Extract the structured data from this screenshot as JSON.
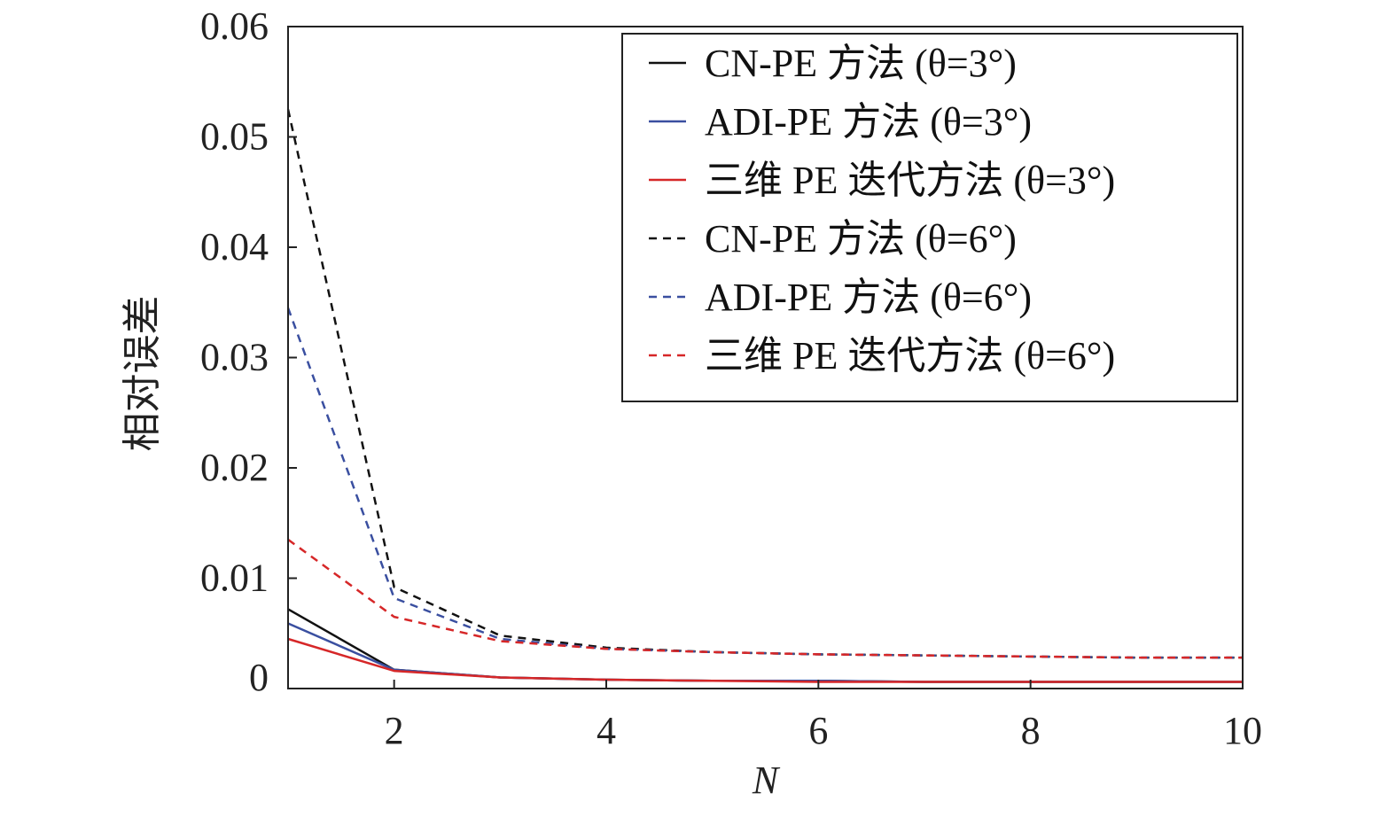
{
  "chart_data": {
    "type": "line",
    "title": "",
    "xlabel": "N",
    "ylabel": "相对误差",
    "xlim": [
      1,
      10
    ],
    "ylim": [
      0,
      0.06
    ],
    "xticks": [
      2,
      4,
      6,
      8,
      10
    ],
    "yticks": [
      0,
      0.01,
      0.02,
      0.03,
      0.04,
      0.05,
      0.06
    ],
    "xtick_labels": [
      "2",
      "4",
      "6",
      "8",
      "10"
    ],
    "ytick_labels": [
      "0",
      "0.01",
      "0.02",
      "0.03",
      "0.04",
      "0.05",
      "0.06"
    ],
    "grid": false,
    "legend_position": "top-right",
    "x": [
      1,
      2,
      3,
      4,
      5,
      6,
      7,
      8,
      9,
      10
    ],
    "series": [
      {
        "name": "CN-PE 方法 (θ=3°)",
        "color": "#111111",
        "dash": "solid",
        "values": [
          0.0072,
          0.0017,
          0.001,
          0.0008,
          0.0007,
          0.0007,
          0.0006,
          0.0006,
          0.0006,
          0.0006
        ]
      },
      {
        "name": "ADI-PE 方法 (θ=3°)",
        "color": "#3a4fa0",
        "dash": "solid",
        "values": [
          0.0059,
          0.0017,
          0.001,
          0.0008,
          0.0007,
          0.0007,
          0.0006,
          0.0006,
          0.0006,
          0.0006
        ]
      },
      {
        "name": "三维 PE 迭代方法 (θ=3°)",
        "color": "#d62728",
        "dash": "solid",
        "values": [
          0.0045,
          0.0016,
          0.001,
          0.0008,
          0.0007,
          0.0006,
          0.0006,
          0.0006,
          0.0006,
          0.0006
        ]
      },
      {
        "name": "CN-PE 方法 (θ=6°)",
        "color": "#111111",
        "dash": "dashed",
        "values": [
          0.0525,
          0.0092,
          0.0048,
          0.0037,
          0.0033,
          0.0031,
          0.003,
          0.0029,
          0.0028,
          0.0028
        ]
      },
      {
        "name": "ADI-PE 方法 (θ=6°)",
        "color": "#3a4fa0",
        "dash": "dashed",
        "values": [
          0.0345,
          0.0082,
          0.0045,
          0.0036,
          0.0033,
          0.0031,
          0.003,
          0.0029,
          0.0028,
          0.0028
        ]
      },
      {
        "name": "三维 PE 迭代方法 (θ=6°)",
        "color": "#d62728",
        "dash": "dashed",
        "values": [
          0.0135,
          0.0065,
          0.0043,
          0.0036,
          0.0033,
          0.0031,
          0.003,
          0.0029,
          0.0028,
          0.0028
        ]
      }
    ]
  }
}
